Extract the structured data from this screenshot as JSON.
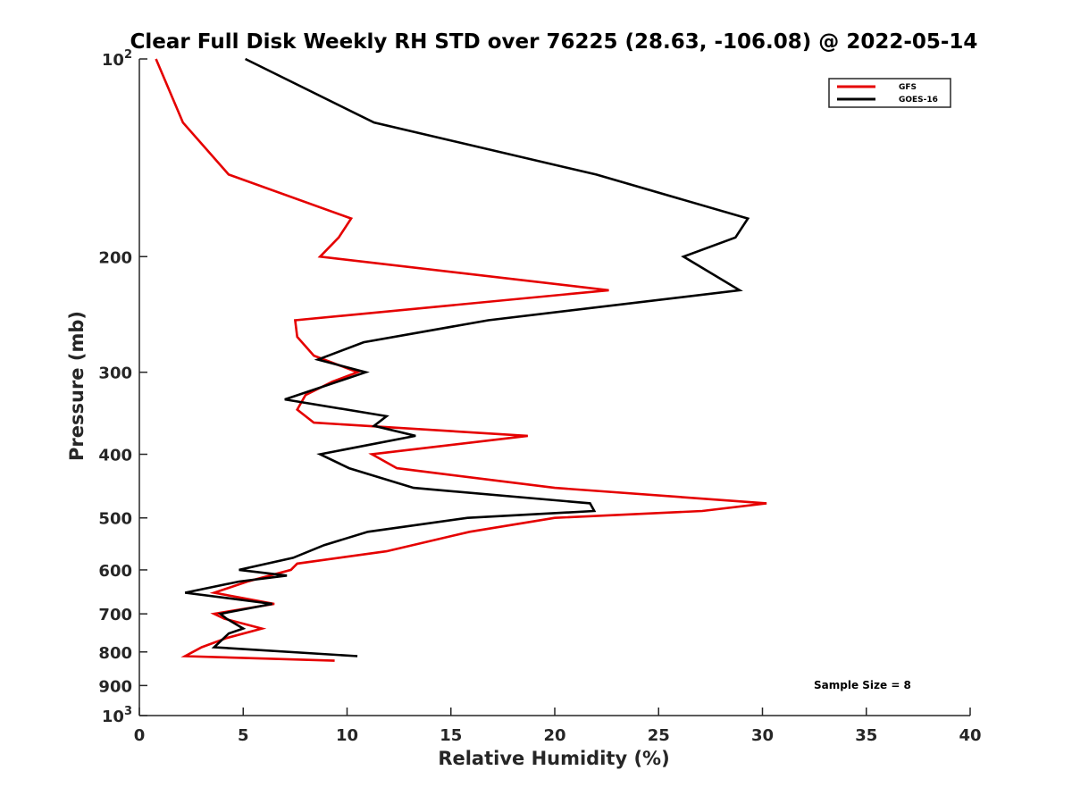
{
  "chart_data": {
    "type": "line",
    "title": "Clear Full Disk Weekly RH STD over 76225 (28.63, -106.08) @ 2022-05-14",
    "xlabel": "Relative Humidity (%)",
    "ylabel": "Pressure (mb)",
    "xlim": [
      0,
      40
    ],
    "ylim": [
      100,
      1000
    ],
    "yscale": "log",
    "y_reversed": true,
    "grid": false,
    "x_ticks": [
      0,
      5,
      10,
      15,
      20,
      25,
      30,
      35,
      40
    ],
    "x_tick_labels": [
      "0",
      "5",
      "10",
      "15",
      "20",
      "25",
      "30",
      "35",
      "40"
    ],
    "y_ticks": [
      100,
      200,
      300,
      400,
      500,
      600,
      700,
      800,
      900,
      1000
    ],
    "y_tick_labels": [
      {
        "base": "10",
        "exp": "2"
      },
      {
        "base": "200",
        "exp": ""
      },
      {
        "base": "300",
        "exp": ""
      },
      {
        "base": "400",
        "exp": ""
      },
      {
        "base": "500",
        "exp": ""
      },
      {
        "base": "600",
        "exp": ""
      },
      {
        "base": "700",
        "exp": ""
      },
      {
        "base": "800",
        "exp": ""
      },
      {
        "base": "900",
        "exp": ""
      },
      {
        "base": "10",
        "exp": "3"
      }
    ],
    "legend_position": "top-right",
    "annotation": "Sample Size = 8",
    "series": [
      {
        "name": "GFS",
        "color": "#e50000",
        "points": [
          [
            0.8,
            100
          ],
          [
            2.1,
            125
          ],
          [
            4.3,
            150
          ],
          [
            10.2,
            175
          ],
          [
            9.6,
            187
          ],
          [
            8.7,
            200
          ],
          [
            22.6,
            225
          ],
          [
            7.5,
            250
          ],
          [
            7.6,
            265
          ],
          [
            8.4,
            283
          ],
          [
            10.5,
            300
          ],
          [
            9.3,
            310
          ],
          [
            8.0,
            325
          ],
          [
            7.6,
            342
          ],
          [
            8.4,
            358
          ],
          [
            18.7,
            375
          ],
          [
            11.2,
            400
          ],
          [
            12.4,
            420
          ],
          [
            20.0,
            450
          ],
          [
            30.2,
            475
          ],
          [
            27.1,
            488
          ],
          [
            20.0,
            500
          ],
          [
            15.9,
            525
          ],
          [
            11.9,
            562
          ],
          [
            7.6,
            587
          ],
          [
            7.3,
            600
          ],
          [
            5.2,
            625
          ],
          [
            3.6,
            650
          ],
          [
            6.5,
            676
          ],
          [
            3.6,
            700
          ],
          [
            4.1,
            712
          ],
          [
            5.9,
            737
          ],
          [
            4.2,
            762
          ],
          [
            3.0,
            787
          ],
          [
            2.2,
            812
          ],
          [
            9.4,
            825
          ]
        ]
      },
      {
        "name": "GOES-16",
        "color": "#000000",
        "points": [
          [
            5.1,
            100
          ],
          [
            11.3,
            125
          ],
          [
            22.0,
            150
          ],
          [
            29.3,
            175
          ],
          [
            28.7,
            187
          ],
          [
            26.2,
            200
          ],
          [
            28.9,
            225
          ],
          [
            16.8,
            250
          ],
          [
            10.8,
            270
          ],
          [
            8.6,
            287
          ],
          [
            10.9,
            300
          ],
          [
            7.0,
            330
          ],
          [
            11.9,
            350
          ],
          [
            11.3,
            362
          ],
          [
            13.3,
            375
          ],
          [
            8.7,
            400
          ],
          [
            10.1,
            420
          ],
          [
            13.2,
            450
          ],
          [
            21.7,
            475
          ],
          [
            21.9,
            488
          ],
          [
            15.8,
            500
          ],
          [
            11.0,
            525
          ],
          [
            8.9,
            550
          ],
          [
            7.4,
            575
          ],
          [
            4.8,
            600
          ],
          [
            7.1,
            612
          ],
          [
            4.8,
            625
          ],
          [
            2.2,
            650
          ],
          [
            6.4,
            676
          ],
          [
            3.9,
            700
          ],
          [
            4.2,
            712
          ],
          [
            5.0,
            737
          ],
          [
            4.3,
            750
          ],
          [
            3.6,
            787
          ],
          [
            10.5,
            812
          ]
        ]
      }
    ]
  }
}
